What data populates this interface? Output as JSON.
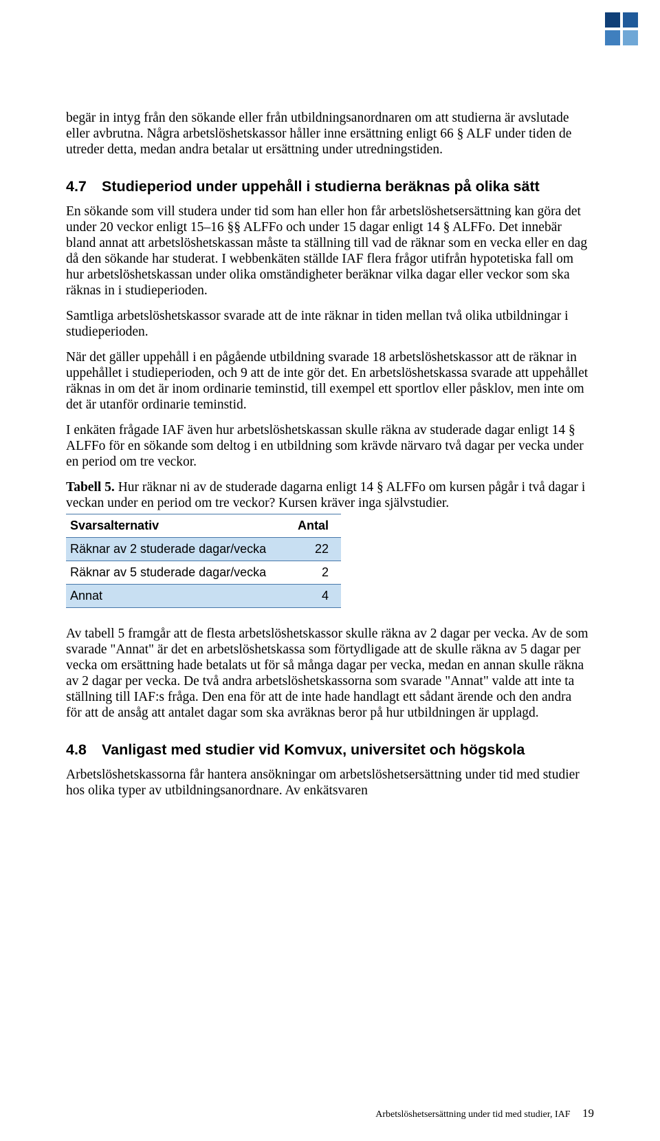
{
  "logo_colors": [
    "#0f3f77",
    "#1f5a9a",
    "#3f7fbe",
    "#6fa7d6"
  ],
  "paragraphs": {
    "intro": "begär in intyg från den sökande eller från utbildningsanordnaren om att studierna är avslutade eller avbrutna. Några arbetslöshetskassor håller inne ersättning enligt 66 § ALF under tiden de utreder detta, medan andra betalar ut ersättning under utredningstiden.",
    "p47_1": "En sökande som vill studera under tid som han eller hon får arbetslöshetsersättning kan göra det under 20 veckor enligt 15–16 §§ ALFFo och under 15 dagar enligt 14 § ALFFo. Det innebär bland annat att arbetslöshetskassan måste ta ställning till vad de räknar som en vecka eller en dag då den sökande har studerat. I webbenkäten ställde IAF flera frågor utifrån hypotetiska fall om hur arbetslöshetskassan under olika omständigheter beräknar vilka dagar eller veckor som ska räknas in i studieperioden.",
    "p47_2": "Samtliga arbetslöshetskassor svarade att de inte räknar in tiden mellan två olika utbildningar i studieperioden.",
    "p47_3": "När det gäller uppehåll i en pågående utbildning svarade 18 arbetslöshetskassor att de räknar in uppehållet i studieperioden, och 9 att de inte gör det. En arbetslöshetskassa svarade att uppehållet räknas in om det är inom ordinarie teminstid, till exempel ett sportlov eller påsklov, men inte om det är utanför ordinarie teminstid.",
    "p47_4": "I enkäten frågade IAF även hur arbetslöshetskassan skulle räkna av studerade dagar enligt 14 § ALFFo för en sökande som deltog i en utbildning som krävde närvaro två dagar per vecka under en period om tre veckor.",
    "after_table": "Av tabell 5 framgår att de flesta arbetslöshetskassor skulle räkna av 2 dagar per vecka. Av de som svarade \"Annat\" är det en arbetslöshetskassa som förtydligade att de skulle räkna av 5 dagar per vecka om ersättning hade betalats ut för så många dagar per vecka, medan en annan skulle räkna av 2 dagar per vecka. De två andra arbetslöshetskassorna som svarade \"Annat\" valde att inte ta ställning till IAF:s fråga. Den ena för att de inte hade handlagt ett sådant ärende och den andra för att de ansåg att antalet dagar som ska avräknas beror på hur utbildningen är upplagd.",
    "p48_1": "Arbetslöshetskassorna får hantera ansökningar om arbetslöshetsersättning under tid med studier hos olika typer av utbildningsanordnare. Av enkätsvaren"
  },
  "headings": {
    "h47_num": "4.7",
    "h47_text": "Studieperiod under uppehåll i studierna beräknas på olika sätt",
    "h48_num": "4.8",
    "h48_text": "Vanligast med studier vid Komvux, universitet och högskola"
  },
  "table5": {
    "caption_label": "Tabell 5.",
    "caption_text": " Hur räknar ni av de studerade dagarna enligt 14 § ALFFo om kursen pågår i två dagar i veckan under en period om tre veckor? Kursen kräver inga självstudier.",
    "columns": [
      "Svarsalternativ",
      "Antal"
    ],
    "rows": [
      {
        "label": "Räknar av 2 studerade dagar/vecka",
        "value": "22",
        "highlight": true
      },
      {
        "label": "Räknar av 5 studerade dagar/vecka",
        "value": "2",
        "highlight": false
      },
      {
        "label": "Annat",
        "value": "4",
        "highlight": true
      }
    ]
  },
  "footer": {
    "text": "Arbetslöshetsersättning under tid med studier, IAF",
    "page": "19"
  }
}
